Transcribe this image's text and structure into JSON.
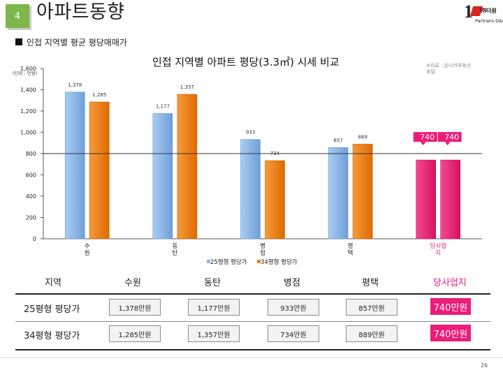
{
  "header": {
    "badge": "4",
    "title": "아파트동향"
  },
  "logo": {
    "brand": "㈜더원",
    "sub": "Partners D&C"
  },
  "section_title": "인접 지역별 평균 평당매매가",
  "source_note": "※자료 : 온나라부동산포탈",
  "page_number": "26",
  "colors": {
    "series1": "#8fb9e8",
    "series2": "#f07d10",
    "highlight": "#ec1c79",
    "badge": "#7db64a"
  },
  "chart_data": {
    "type": "bar",
    "title": "인접 지역별 아파트 평당(3.3㎡) 시세 비교",
    "unit_label": "(단위 : 만원)",
    "categories": [
      "수원",
      "동탄",
      "병점",
      "평택",
      "당사업지"
    ],
    "series": [
      {
        "name": "25평형 평당가",
        "values": [
          1378,
          1177,
          933,
          857,
          740
        ]
      },
      {
        "name": "34평형 평당가",
        "values": [
          1285,
          1357,
          734,
          889,
          740
        ]
      }
    ],
    "data_labels": [
      [
        "1,378",
        "1,177",
        "933",
        "857",
        "740"
      ],
      [
        "1,285",
        "1,357",
        "734",
        "889",
        "740"
      ]
    ],
    "highlight_category": "당사업지",
    "reference_line": 800,
    "ylim": [
      0,
      1600
    ],
    "yticks": [
      "0",
      "200",
      "400",
      "600",
      "800",
      "1,000",
      "1,200",
      "1,400",
      "1,600"
    ],
    "legend_position": "bottom"
  },
  "table": {
    "header": [
      "지역",
      "수원",
      "동탄",
      "병점",
      "평택",
      "당사업지"
    ],
    "rows": [
      {
        "label": "25평형 평당가",
        "cells": [
          "1,378만원",
          "1,177만원",
          "933만원",
          "857만원",
          "740만원"
        ]
      },
      {
        "label": "34평형 평당가",
        "cells": [
          "1,285만원",
          "1,357만원",
          "734만원",
          "889만원",
          "740만원"
        ]
      }
    ]
  }
}
